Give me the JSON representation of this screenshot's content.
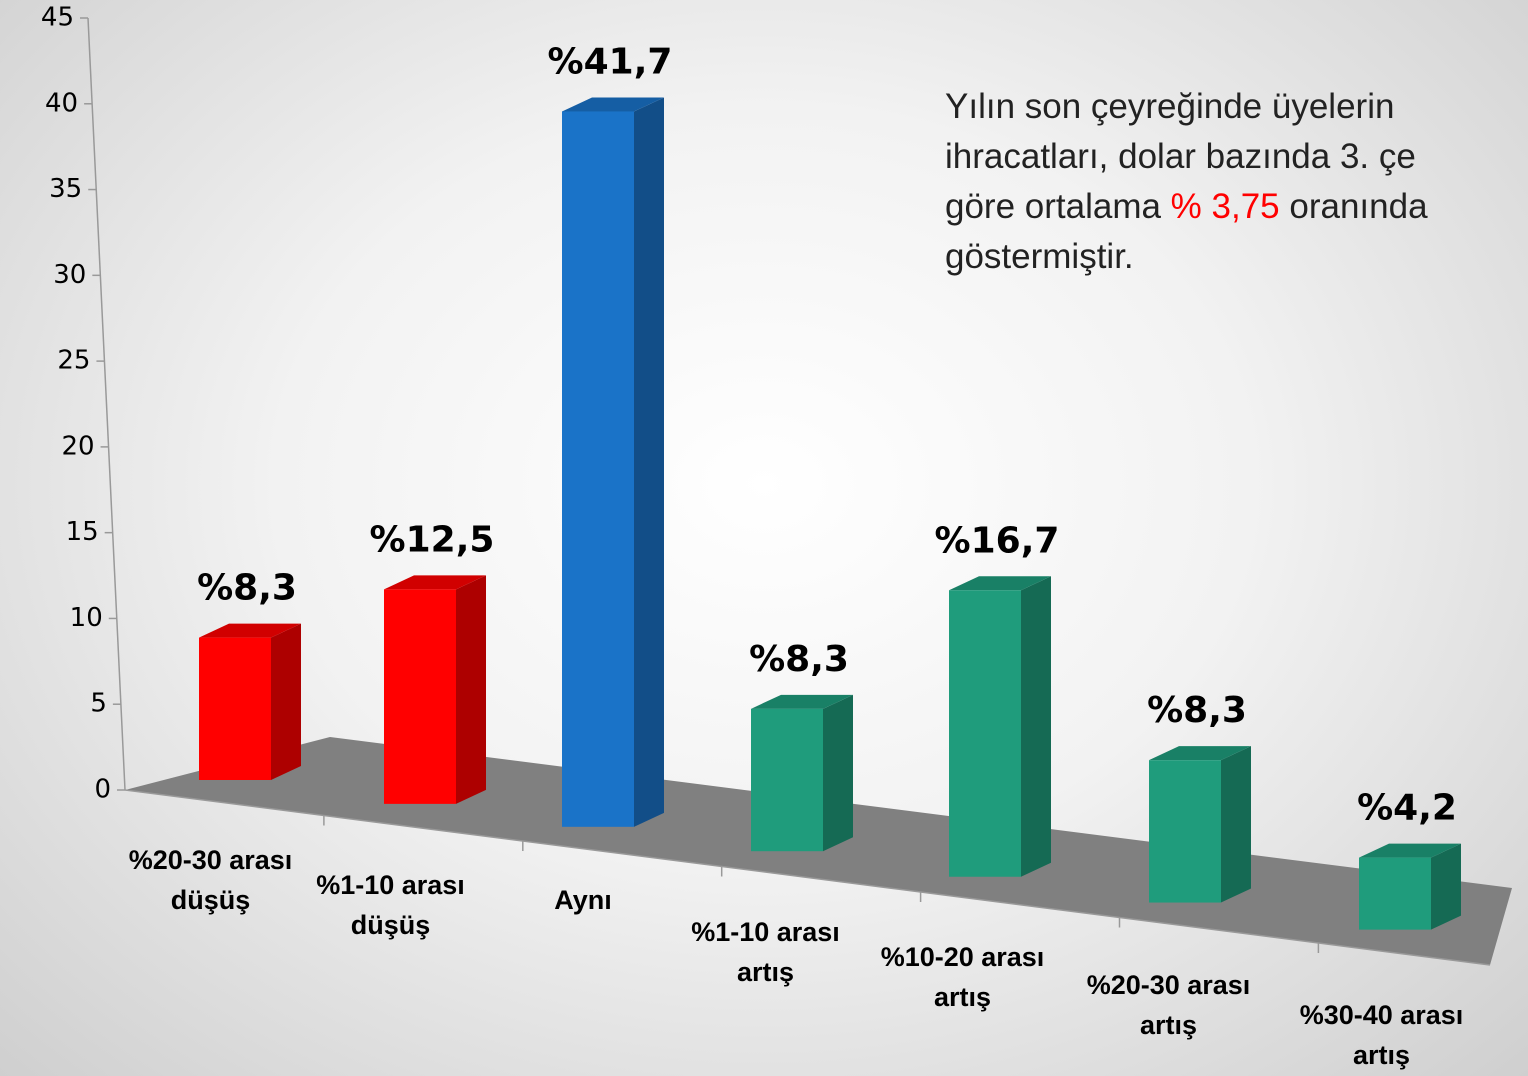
{
  "chart_data": {
    "type": "bar3d",
    "categories": [
      "%20-30 arası düşüş",
      "%1-10 arası düşüş",
      "Aynı",
      "%1-10 arası artış",
      "%10-20 arası artış",
      "%20-30 arası artış",
      "%30-40 arası artış"
    ],
    "values": [
      8.3,
      12.5,
      41.7,
      8.3,
      16.7,
      8.3,
      4.2
    ],
    "value_labels": [
      "%8,3",
      "%12,5",
      "%41,7",
      "%8,3",
      "%16,7",
      "%8,3",
      "%4,2"
    ],
    "colors": [
      "#ff0000",
      "#ff0000",
      "#1a73c8",
      "#1f9c7c",
      "#1f9c7c",
      "#1f9c7c",
      "#1f9c7c"
    ],
    "ylim": [
      0,
      45
    ],
    "yticks": [
      0,
      5,
      10,
      15,
      20,
      25,
      30,
      35,
      40,
      45
    ],
    "annotation": {
      "line1": "Yılın son çeyreğinde üyelerin",
      "line2": "ihracatları, dolar bazında 3. çe",
      "line3_before": "göre ortalama ",
      "highlight": "% 3,75",
      "line3_after": " oranında",
      "line4": "göstermiştir.",
      "highlight_color": "#ff0000"
    }
  }
}
